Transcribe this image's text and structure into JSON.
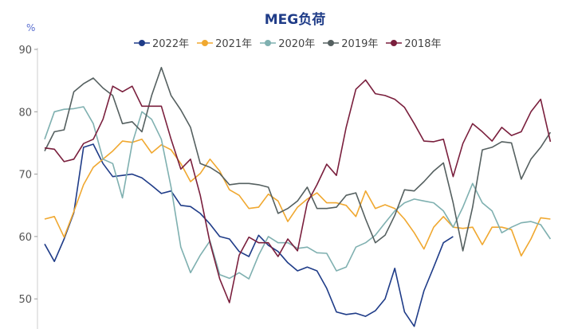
{
  "chart_data": {
    "type": "line",
    "title": "MEG负荷",
    "ylabel": "%",
    "xlabel": "",
    "ylim": [
      45,
      90
    ],
    "yticks": [
      50,
      60,
      70,
      80,
      90
    ],
    "grid": false,
    "legend_placement": "top",
    "x_unit": "week",
    "series": [
      {
        "name": "2022年",
        "color": "#1f3c88",
        "values": [
          58.8,
          56,
          59.6,
          63.8,
          74.3,
          74.8,
          71.7,
          69.6,
          69.8,
          70,
          69.4,
          68.2,
          66.9,
          67.3,
          65,
          64.8,
          63.7,
          62,
          60,
          59.6,
          57.6,
          56.8,
          60.2,
          58.6,
          57.6,
          55.8,
          54.5,
          55.1,
          54.5,
          51.7,
          47.9,
          47.5,
          47.7,
          47.2,
          48.1,
          50,
          54.9,
          47.9,
          45.6,
          51.3,
          55.1,
          59,
          60
        ]
      },
      {
        "name": "2021年",
        "color": "#f0a830",
        "values": [
          62.8,
          63.2,
          59.9,
          64,
          68.3,
          71.1,
          72.4,
          73.7,
          75.3,
          75.1,
          75.6,
          73.4,
          74.7,
          73.9,
          71.7,
          68.8,
          70.1,
          72.4,
          70.5,
          67.5,
          66.6,
          64.5,
          64.7,
          66.8,
          65.7,
          62.4,
          64.7,
          66,
          67,
          65.4,
          65.4,
          65,
          63.2,
          67.3,
          64.5,
          65.1,
          64.5,
          62.8,
          60.6,
          58,
          61.5,
          63.2,
          61.5,
          61.3,
          61.5,
          58.7,
          61.5,
          61.5,
          61.1,
          56.9,
          59.6,
          63,
          62.8
        ]
      },
      {
        "name": "2020年",
        "color": "#7fb0b0",
        "values": [
          75.6,
          80,
          80.4,
          80.5,
          80.8,
          78.1,
          72.4,
          71.7,
          66.2,
          74.9,
          80,
          78.8,
          75.6,
          67.9,
          58.3,
          54.2,
          57,
          59.3,
          53.9,
          53.3,
          54.2,
          53.2,
          57,
          60,
          59,
          59,
          58.1,
          58.3,
          57.4,
          57.3,
          54.5,
          55.1,
          58.3,
          59,
          60.2,
          62.2,
          64.1,
          65.4,
          66,
          65.7,
          65.4,
          64.1,
          61.5,
          64.7,
          68.5,
          65.4,
          64.1,
          60.6,
          61.5,
          62.2,
          62.4,
          61.9,
          59.6
        ]
      },
      {
        "name": "2019年",
        "color": "#556060",
        "values": [
          73.7,
          76.8,
          77.1,
          83.2,
          84.5,
          85.4,
          83.8,
          82.6,
          78.1,
          78.4,
          76.8,
          82.6,
          87.1,
          82.6,
          80.3,
          77.5,
          71.7,
          71.1,
          70.1,
          68.3,
          68.5,
          68.5,
          68.3,
          67.9,
          63.7,
          64.5,
          65.7,
          67.9,
          64.5,
          64.5,
          64.7,
          66.6,
          67,
          62.8,
          59,
          60.2,
          63.4,
          67.5,
          67.3,
          68.8,
          70.5,
          71.8,
          65.4,
          57.7,
          64.7,
          73.9,
          74.3,
          75.2,
          75,
          69.2,
          72.4,
          74.3,
          76.7
        ]
      },
      {
        "name": "2018年",
        "color": "#7a1f3d",
        "values": [
          74.2,
          74,
          72,
          72.4,
          74.9,
          75.6,
          78.8,
          84.1,
          83.2,
          84.1,
          80.9,
          80.9,
          80.9,
          75.6,
          70.8,
          72.4,
          66.6,
          59,
          53.2,
          49.4,
          57,
          59.9,
          59,
          59,
          56.8,
          59.6,
          57.7,
          65.4,
          68.3,
          71.6,
          69.8,
          77.5,
          83.6,
          85.1,
          82.9,
          82.6,
          82,
          80.7,
          78.1,
          75.3,
          75.2,
          75.6,
          69.6,
          74.9,
          78.1,
          76.8,
          75.3,
          77.5,
          76.2,
          76.8,
          80,
          82,
          75.2
        ]
      }
    ]
  }
}
